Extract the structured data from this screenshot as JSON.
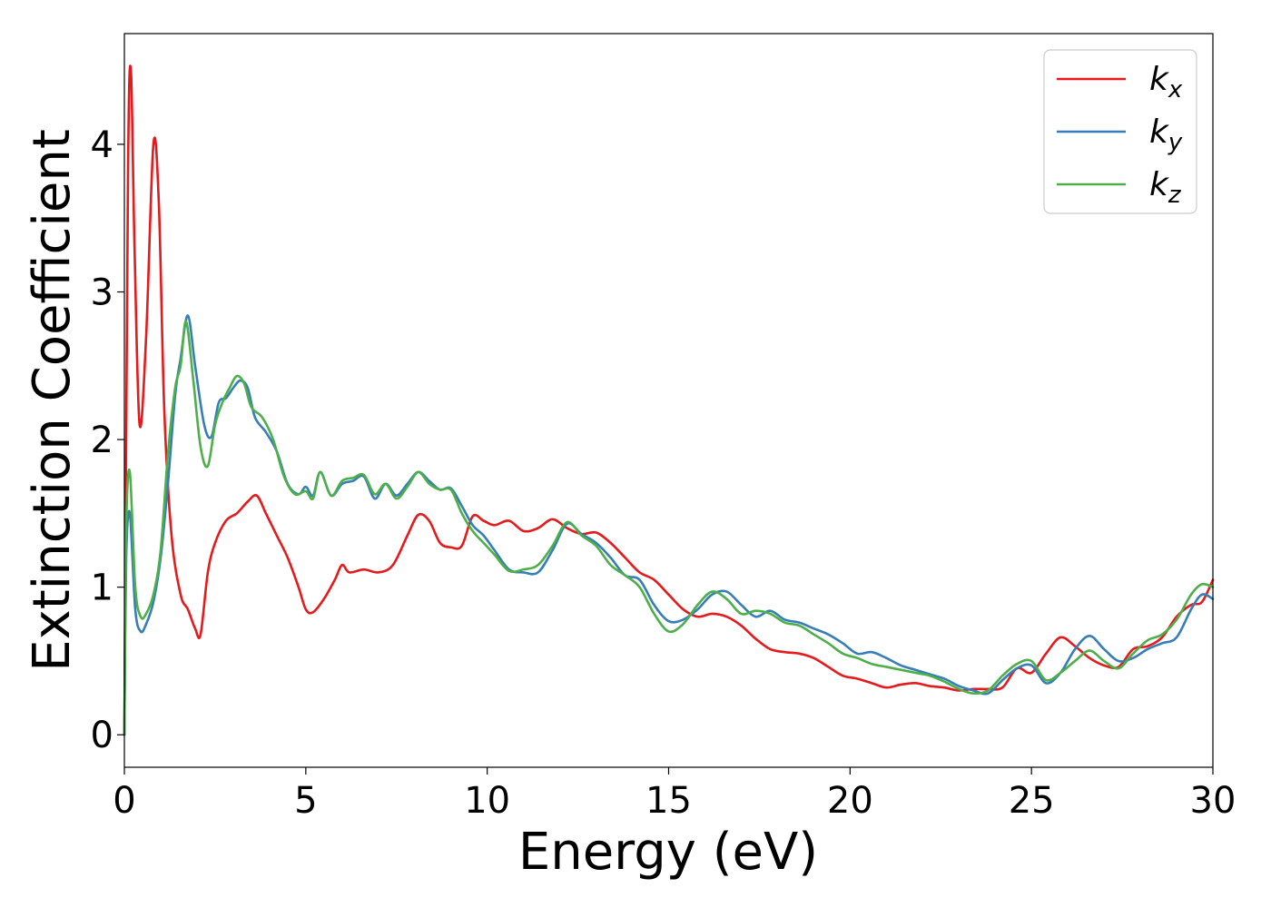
{
  "chart_data": {
    "type": "line",
    "title": "",
    "xlabel": "Energy (eV)",
    "ylabel": "Extinction Coefficient",
    "xlim": [
      0,
      30
    ],
    "ylim": [
      -0.22,
      4.75
    ],
    "xticks": [
      0,
      5,
      10,
      15,
      20,
      25,
      30
    ],
    "yticks": [
      0,
      1,
      2,
      3,
      4
    ],
    "grid": false,
    "legend_position": "top-right",
    "series": [
      {
        "name": "k_x",
        "legend_base": "k",
        "legend_sub": "x",
        "color": "#e41a1c",
        "x": [
          0,
          0.1,
          0.18,
          0.28,
          0.42,
          0.6,
          0.8,
          0.95,
          1.1,
          1.3,
          1.55,
          1.75,
          1.95,
          2.1,
          2.3,
          2.5,
          2.8,
          3.1,
          3.4,
          3.65,
          3.9,
          4.2,
          4.5,
          4.8,
          5.0,
          5.2,
          5.5,
          5.8,
          6.0,
          6.2,
          6.6,
          7.0,
          7.4,
          7.8,
          8.1,
          8.4,
          8.7,
          9.0,
          9.3,
          9.6,
          9.9,
          10.2,
          10.6,
          11.0,
          11.4,
          11.8,
          12.2,
          12.6,
          13.0,
          13.4,
          13.8,
          14.2,
          14.6,
          15.0,
          15.4,
          15.8,
          16.2,
          16.6,
          17.0,
          17.4,
          17.8,
          18.2,
          18.6,
          19.0,
          19.4,
          19.8,
          20.2,
          20.6,
          21.0,
          21.4,
          21.8,
          22.2,
          22.6,
          23.0,
          23.4,
          23.8,
          24.2,
          24.6,
          25.0,
          25.4,
          25.8,
          26.2,
          26.6,
          27.0,
          27.4,
          27.8,
          28.2,
          28.6,
          29.0,
          29.4,
          29.7,
          30.0
        ],
        "y": [
          0.0,
          3.8,
          4.5,
          3.3,
          2.1,
          2.7,
          4.0,
          3.6,
          2.2,
          1.35,
          0.95,
          0.85,
          0.72,
          0.68,
          1.1,
          1.3,
          1.45,
          1.5,
          1.58,
          1.62,
          1.5,
          1.35,
          1.2,
          1.0,
          0.85,
          0.83,
          0.92,
          1.05,
          1.15,
          1.1,
          1.12,
          1.1,
          1.15,
          1.35,
          1.49,
          1.45,
          1.3,
          1.27,
          1.28,
          1.48,
          1.45,
          1.42,
          1.45,
          1.38,
          1.4,
          1.46,
          1.4,
          1.36,
          1.37,
          1.3,
          1.2,
          1.1,
          1.05,
          0.95,
          0.85,
          0.8,
          0.82,
          0.8,
          0.74,
          0.65,
          0.58,
          0.56,
          0.55,
          0.52,
          0.46,
          0.4,
          0.38,
          0.35,
          0.32,
          0.34,
          0.35,
          0.33,
          0.32,
          0.3,
          0.31,
          0.31,
          0.32,
          0.45,
          0.42,
          0.55,
          0.66,
          0.6,
          0.52,
          0.47,
          0.46,
          0.58,
          0.6,
          0.66,
          0.8,
          0.88,
          0.9,
          1.05
        ]
      },
      {
        "name": "k_y",
        "legend_base": "k",
        "legend_sub": "y",
        "color": "#377eb8",
        "x": [
          0,
          0.05,
          0.15,
          0.3,
          0.45,
          0.6,
          0.8,
          1.0,
          1.2,
          1.4,
          1.55,
          1.75,
          1.95,
          2.2,
          2.4,
          2.6,
          2.8,
          3.0,
          3.2,
          3.4,
          3.6,
          3.9,
          4.2,
          4.5,
          4.8,
          5.0,
          5.2,
          5.4,
          5.7,
          6.0,
          6.3,
          6.6,
          6.9,
          7.2,
          7.5,
          7.8,
          8.1,
          8.4,
          8.7,
          9.0,
          9.3,
          9.6,
          9.9,
          10.2,
          10.6,
          11.0,
          11.4,
          11.8,
          12.2,
          12.6,
          13.0,
          13.4,
          13.8,
          14.2,
          14.6,
          15.0,
          15.4,
          15.8,
          16.2,
          16.6,
          17.0,
          17.4,
          17.8,
          18.2,
          18.6,
          19.0,
          19.4,
          19.8,
          20.2,
          20.6,
          21.0,
          21.4,
          21.8,
          22.2,
          22.6,
          23.0,
          23.4,
          23.8,
          24.2,
          24.6,
          25.0,
          25.4,
          25.8,
          26.2,
          26.6,
          27.0,
          27.4,
          27.8,
          28.2,
          28.6,
          29.0,
          29.4,
          29.7,
          30.0
        ],
        "y": [
          0.0,
          1.2,
          1.5,
          0.85,
          0.7,
          0.75,
          0.9,
          1.2,
          1.7,
          2.3,
          2.55,
          2.84,
          2.5,
          2.1,
          2.02,
          2.25,
          2.28,
          2.35,
          2.4,
          2.35,
          2.15,
          2.05,
          1.92,
          1.7,
          1.63,
          1.68,
          1.62,
          1.78,
          1.62,
          1.7,
          1.72,
          1.75,
          1.6,
          1.7,
          1.62,
          1.7,
          1.78,
          1.72,
          1.66,
          1.67,
          1.55,
          1.42,
          1.35,
          1.25,
          1.12,
          1.1,
          1.1,
          1.25,
          1.43,
          1.36,
          1.3,
          1.2,
          1.08,
          1.05,
          0.88,
          0.77,
          0.78,
          0.85,
          0.95,
          0.97,
          0.88,
          0.8,
          0.84,
          0.78,
          0.76,
          0.72,
          0.68,
          0.62,
          0.55,
          0.56,
          0.52,
          0.47,
          0.44,
          0.41,
          0.38,
          0.33,
          0.3,
          0.28,
          0.37,
          0.45,
          0.47,
          0.35,
          0.42,
          0.58,
          0.67,
          0.58,
          0.5,
          0.52,
          0.58,
          0.62,
          0.66,
          0.85,
          0.95,
          0.92
        ]
      },
      {
        "name": "k_z",
        "legend_base": "k",
        "legend_sub": "z",
        "color": "#4daf4a",
        "x": [
          0,
          0.05,
          0.15,
          0.3,
          0.45,
          0.6,
          0.8,
          1.0,
          1.2,
          1.4,
          1.55,
          1.7,
          1.9,
          2.1,
          2.3,
          2.5,
          2.7,
          2.9,
          3.1,
          3.3,
          3.5,
          3.8,
          4.1,
          4.4,
          4.7,
          5.0,
          5.2,
          5.4,
          5.7,
          6.0,
          6.3,
          6.6,
          6.9,
          7.2,
          7.5,
          7.8,
          8.1,
          8.4,
          8.7,
          9.0,
          9.3,
          9.6,
          9.9,
          10.2,
          10.6,
          11.0,
          11.4,
          11.8,
          12.2,
          12.6,
          13.0,
          13.4,
          13.8,
          14.2,
          14.6,
          15.0,
          15.4,
          15.8,
          16.2,
          16.6,
          17.0,
          17.4,
          17.8,
          18.2,
          18.6,
          19.0,
          19.4,
          19.8,
          20.2,
          20.6,
          21.0,
          21.4,
          21.8,
          22.2,
          22.6,
          23.0,
          23.4,
          23.8,
          24.2,
          24.6,
          25.0,
          25.4,
          25.8,
          26.2,
          26.6,
          27.0,
          27.4,
          27.8,
          28.2,
          28.6,
          29.0,
          29.4,
          29.7,
          30.0
        ],
        "y": [
          0.0,
          1.4,
          1.78,
          1.0,
          0.8,
          0.82,
          0.95,
          1.25,
          1.9,
          2.35,
          2.5,
          2.8,
          2.4,
          1.95,
          1.82,
          2.1,
          2.25,
          2.35,
          2.43,
          2.38,
          2.22,
          2.15,
          2.0,
          1.75,
          1.63,
          1.65,
          1.6,
          1.78,
          1.62,
          1.72,
          1.74,
          1.76,
          1.63,
          1.7,
          1.6,
          1.68,
          1.78,
          1.7,
          1.66,
          1.66,
          1.5,
          1.38,
          1.3,
          1.22,
          1.11,
          1.12,
          1.15,
          1.28,
          1.44,
          1.35,
          1.28,
          1.15,
          1.08,
          1.0,
          0.82,
          0.7,
          0.75,
          0.88,
          0.97,
          0.92,
          0.82,
          0.84,
          0.82,
          0.76,
          0.74,
          0.68,
          0.62,
          0.55,
          0.52,
          0.48,
          0.46,
          0.44,
          0.42,
          0.4,
          0.36,
          0.31,
          0.28,
          0.3,
          0.4,
          0.48,
          0.5,
          0.37,
          0.42,
          0.5,
          0.57,
          0.5,
          0.45,
          0.55,
          0.64,
          0.68,
          0.78,
          0.95,
          1.02,
          1.0
        ]
      }
    ]
  }
}
